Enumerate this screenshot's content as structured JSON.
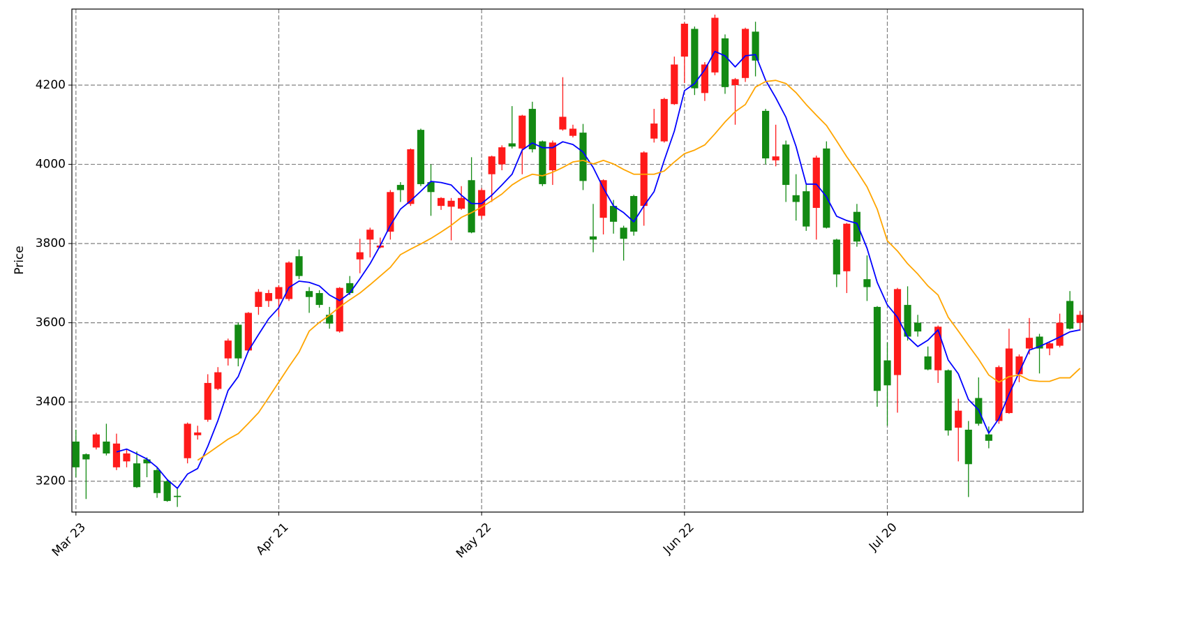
{
  "chart_data": {
    "type": "candlestick",
    "ylabel": "Price",
    "categories": [
      "Mar 23",
      null,
      null,
      null,
      null,
      null,
      null,
      null,
      null,
      null,
      null,
      null,
      null,
      null,
      null,
      null,
      null,
      null,
      null,
      null,
      "Apr 21",
      null,
      null,
      null,
      null,
      null,
      null,
      null,
      null,
      null,
      null,
      null,
      null,
      null,
      null,
      null,
      null,
      null,
      null,
      null,
      "May 22",
      null,
      null,
      null,
      null,
      null,
      null,
      null,
      null,
      null,
      null,
      null,
      null,
      null,
      null,
      null,
      null,
      null,
      null,
      null,
      "Jun 22",
      null,
      null,
      null,
      null,
      null,
      null,
      null,
      null,
      null,
      null,
      null,
      null,
      null,
      null,
      null,
      null,
      null,
      null,
      null,
      "Jul 20",
      null,
      null,
      null,
      null,
      null,
      null,
      null,
      null,
      null,
      null,
      null,
      null,
      null,
      null,
      null,
      null,
      null,
      null,
      null
    ],
    "open": [
      3300,
      3268,
      3285,
      3300,
      3235,
      3250,
      3245,
      3255,
      3228,
      3200,
      3163,
      3258,
      3316,
      3355,
      3433,
      3510,
      3595,
      3530,
      3640,
      3655,
      3660,
      3660,
      3768,
      3680,
      3675,
      3620,
      3578,
      3700,
      3760,
      3810,
      3790,
      3830,
      3948,
      3900,
      4087,
      3955,
      3895,
      3893,
      3888,
      3960,
      3870,
      3975,
      4000,
      4053,
      4040,
      4140,
      4058,
      3985,
      4088,
      4072,
      4080,
      3818,
      3865,
      3895,
      3840,
      3920,
      3895,
      4065,
      4058,
      4152,
      4272,
      4342,
      4180,
      4232,
      4318,
      4200,
      4218,
      4335,
      4135,
      4010,
      4050,
      3922,
      3932,
      3890,
      4040,
      3810,
      3730,
      3880,
      3710,
      3640,
      3505,
      3468,
      3645,
      3600,
      3515,
      3480,
      3480,
      3335,
      3330,
      3410,
      3318,
      3352,
      3372,
      3470,
      3535,
      3565,
      3535,
      3542,
      3655,
      3600
    ],
    "high": [
      3330,
      3270,
      3322,
      3345,
      3320,
      3280,
      3275,
      3260,
      3235,
      3205,
      3185,
      3348,
      3340,
      3470,
      3488,
      3560,
      3600,
      3627,
      3685,
      3683,
      3695,
      3755,
      3785,
      3690,
      3682,
      3640,
      3690,
      3718,
      3812,
      3840,
      3815,
      3935,
      3955,
      4040,
      4090,
      4000,
      3917,
      3915,
      3945,
      4018,
      3940,
      4022,
      4048,
      4147,
      4125,
      4158,
      4060,
      4060,
      4220,
      4100,
      4102,
      3900,
      3962,
      3910,
      3845,
      3923,
      4033,
      4140,
      4168,
      4272,
      4358,
      4348,
      4258,
      4378,
      4328,
      4218,
      4345,
      4360,
      4140,
      4100,
      4060,
      3975,
      3950,
      4022,
      4058,
      3812,
      3852,
      3900,
      3770,
      3642,
      3550,
      3688,
      3692,
      3620,
      3540,
      3593,
      3482,
      3408,
      3352,
      3462,
      3338,
      3492,
      3585,
      3520,
      3612,
      3572,
      3552,
      3623,
      3680,
      3630
    ],
    "low": [
      3210,
      3155,
      3280,
      3265,
      3228,
      3235,
      3183,
      3210,
      3158,
      3148,
      3135,
      3245,
      3305,
      3350,
      3430,
      3492,
      3490,
      3525,
      3620,
      3640,
      3615,
      3655,
      3710,
      3625,
      3638,
      3585,
      3575,
      3670,
      3725,
      3765,
      3788,
      3810,
      3905,
      3895,
      3945,
      3870,
      3885,
      3808,
      3885,
      3826,
      3862,
      3905,
      3985,
      4040,
      3975,
      4030,
      3945,
      3948,
      4085,
      4068,
      3935,
      3778,
      3823,
      3825,
      3757,
      3820,
      3845,
      4055,
      4055,
      4150,
      4205,
      4175,
      4160,
      4225,
      4178,
      4100,
      4208,
      4222,
      4000,
      3995,
      3905,
      3858,
      3832,
      3810,
      3838,
      3690,
      3675,
      3792,
      3655,
      3388,
      3340,
      3373,
      3555,
      3565,
      3480,
      3448,
      3315,
      3250,
      3160,
      3340,
      3283,
      3345,
      3370,
      3450,
      3520,
      3472,
      3518,
      3538,
      3583,
      3580
    ],
    "close": [
      3235,
      3255,
      3318,
      3270,
      3295,
      3270,
      3185,
      3245,
      3170,
      3150,
      3160,
      3345,
      3323,
      3448,
      3475,
      3555,
      3510,
      3625,
      3678,
      3675,
      3690,
      3752,
      3718,
      3665,
      3645,
      3598,
      3688,
      3675,
      3778,
      3835,
      3795,
      3930,
      3935,
      4038,
      3950,
      3930,
      3915,
      3908,
      3915,
      3828,
      3935,
      4020,
      4043,
      4045,
      4123,
      4038,
      3950,
      4055,
      4120,
      4090,
      3958,
      3810,
      3960,
      3855,
      3812,
      3830,
      4030,
      4103,
      4165,
      4252,
      4355,
      4192,
      4252,
      4370,
      4195,
      4215,
      4342,
      4262,
      4015,
      4020,
      3948,
      3905,
      3843,
      4017,
      3840,
      3722,
      3850,
      3805,
      3690,
      3428,
      3442,
      3685,
      3565,
      3578,
      3482,
      3590,
      3328,
      3378,
      3243,
      3345,
      3302,
      3488,
      3535,
      3515,
      3562,
      3535,
      3548,
      3600,
      3585,
      3620
    ],
    "up_color": "#ff1a1a",
    "down_color": "#138a13",
    "lines": [
      {
        "color": "#0000ff",
        "values": [
          null,
          null,
          null,
          null,
          3274,
          3281,
          3269,
          3256,
          3235,
          3204,
          3182,
          3218,
          3232,
          3288,
          3353,
          3429,
          3464,
          3529,
          3570,
          3610,
          3638,
          3689,
          3705,
          3702,
          3693,
          3670,
          3656,
          3675,
          3711,
          3749,
          3795,
          3846,
          3887,
          3908,
          3932,
          3957,
          3954,
          3948,
          3922,
          3901,
          3901,
          3922,
          3948,
          3975,
          4036,
          4054,
          4042,
          4042,
          4057,
          4050,
          4031,
          3992,
          3940,
          3895,
          3878,
          3855,
          3895,
          3931,
          4010,
          4084,
          4186,
          4204,
          4239,
          4285,
          4274,
          4246,
          4274,
          4277,
          4212,
          4168,
          4119,
          4045,
          3950,
          3950,
          3918,
          3869,
          3858,
          3851,
          3788,
          3702,
          3645,
          3614,
          3564,
          3540,
          3556,
          3582,
          3506,
          3471,
          3406,
          3380,
          3321,
          3358,
          3420,
          3475,
          3531,
          3540,
          3552,
          3564,
          3577,
          3582
        ]
      },
      {
        "color": "#ffa500",
        "values": [
          null,
          null,
          null,
          null,
          null,
          null,
          null,
          null,
          null,
          null,
          null,
          null,
          3253,
          3270,
          3288,
          3306,
          3320,
          3346,
          3373,
          3411,
          3450,
          3489,
          3526,
          3579,
          3601,
          3619,
          3640,
          3658,
          3675,
          3696,
          3718,
          3740,
          3772,
          3786,
          3799,
          3813,
          3829,
          3846,
          3866,
          3878,
          3892,
          3908,
          3925,
          3948,
          3964,
          3975,
          3971,
          3980,
          3992,
          4006,
          4010,
          4001,
          4010,
          4001,
          3987,
          3975,
          3975,
          3975,
          3983,
          4006,
          4027,
          4036,
          4049,
          4077,
          4107,
          4133,
          4151,
          4195,
          4209,
          4212,
          4204,
          4181,
          4151,
          4124,
          4098,
          4059,
          4019,
          3983,
          3943,
          3887,
          3807,
          3781,
          3749,
          3723,
          3693,
          3670,
          3614,
          3579,
          3543,
          3508,
          3468,
          3450,
          3464,
          3468,
          3455,
          3452,
          3452,
          3461,
          3461,
          3485
        ]
      }
    ],
    "xlim": [
      -0.4,
      99.3
    ],
    "ylim": [
      3122,
      4392
    ],
    "yticks": [
      3200,
      3400,
      3600,
      3800,
      4000,
      4200
    ],
    "grid": true
  }
}
